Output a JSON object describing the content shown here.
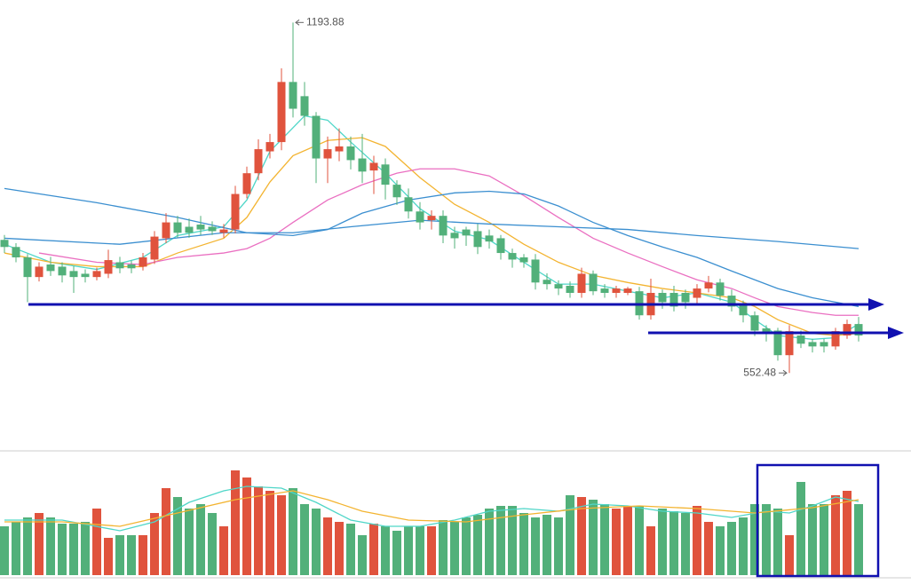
{
  "chart_data": [
    {
      "type": "candlestick",
      "ylim": [
        431,
        1235
      ],
      "up_color": "#e0533d",
      "down_color": "#52b07a",
      "open": [
        796,
        783,
        764,
        728,
        751,
        747,
        739,
        734,
        728,
        734,
        755,
        751,
        747,
        760,
        799,
        828,
        820,
        824,
        820,
        809,
        815,
        880,
        918,
        958,
        975,
        1085,
        1059,
        1023,
        945,
        958,
        967,
        945,
        923,
        934,
        897,
        874,
        848,
        832,
        840,
        809,
        815,
        812,
        804,
        799,
        772,
        764,
        760,
        723,
        715,
        712,
        699,
        734,
        707,
        699,
        699,
        702,
        658,
        699,
        699,
        699,
        690,
        707,
        718,
        694,
        677,
        658,
        634,
        630,
        585,
        621,
        609,
        609,
        601,
        621,
        642
      ],
      "close": [
        783,
        764,
        728,
        747,
        739,
        731,
        728,
        728,
        739,
        759,
        744,
        744,
        764,
        802,
        828,
        809,
        809,
        815,
        812,
        815,
        880,
        918,
        962,
        975,
        1085,
        1036,
        1023,
        945,
        962,
        967,
        942,
        921,
        937,
        897,
        874,
        848,
        828,
        840,
        804,
        799,
        804,
        783,
        793,
        772,
        760,
        755,
        718,
        715,
        707,
        699,
        734,
        702,
        699,
        707,
        707,
        658,
        699,
        682,
        674,
        682,
        707,
        718,
        694,
        674,
        658,
        630,
        625,
        585,
        629,
        606,
        601,
        601,
        629,
        642,
        621
      ],
      "high": [
        805,
        790,
        770,
        755,
        765,
        755,
        748,
        742,
        745,
        778,
        765,
        758,
        772,
        812,
        845,
        840,
        835,
        840,
        830,
        825,
        895,
        930,
        980,
        990,
        1110,
        1193.88,
        1085,
        1030,
        985,
        1000,
        985,
        990,
        950,
        945,
        905,
        890,
        865,
        850,
        850,
        820,
        820,
        825,
        815,
        805,
        780,
        770,
        770,
        735,
        722,
        720,
        745,
        740,
        715,
        712,
        710,
        710,
        725,
        705,
        712,
        705,
        715,
        730,
        725,
        705,
        685,
        665,
        640,
        635,
        640,
        630,
        615,
        615,
        635,
        650,
        655
      ],
      "low": [
        772,
        755,
        682,
        720,
        730,
        718,
        699,
        718,
        722,
        726,
        735,
        735,
        740,
        752,
        790,
        800,
        800,
        805,
        805,
        800,
        808,
        872,
        905,
        945,
        960,
        1020,
        1005,
        900,
        900,
        940,
        925,
        900,
        880,
        870,
        860,
        835,
        815,
        815,
        790,
        780,
        785,
        770,
        780,
        760,
        745,
        745,
        705,
        705,
        695,
        690,
        690,
        695,
        690,
        690,
        695,
        650,
        650,
        670,
        665,
        670,
        680,
        700,
        685,
        665,
        645,
        620,
        610,
        575,
        552.48,
        598,
        590,
        590,
        595,
        615,
        610
      ],
      "lines": [
        {
          "color": "#4fd6c8",
          "x": [
            0,
            4,
            8,
            12,
            15,
            19,
            21,
            23,
            26,
            28,
            30,
            33,
            36,
            39,
            42,
            45,
            48,
            51,
            54,
            57,
            60,
            63,
            65,
            67,
            70,
            72,
            74
          ],
          "values": [
            788,
            755,
            742,
            764,
            804,
            820,
            869,
            958,
            1023,
            1015,
            975,
            918,
            853,
            812,
            796,
            755,
            715,
            715,
            702,
            690,
            699,
            682,
            650,
            621,
            614,
            617,
            642
          ]
        },
        {
          "color": "#f3b431",
          "x": [
            0,
            4,
            8,
            12,
            15,
            19,
            21,
            23,
            25,
            28,
            31,
            33,
            36,
            39,
            42,
            45,
            48,
            51,
            54,
            57,
            60,
            63,
            65,
            67,
            70,
            72,
            74
          ],
          "values": [
            772,
            755,
            747,
            747,
            772,
            799,
            837,
            902,
            950,
            978,
            983,
            967,
            910,
            861,
            828,
            788,
            755,
            731,
            718,
            707,
            699,
            690,
            674,
            650,
            625,
            621,
            625
          ]
        },
        {
          "color": "#ea6fc1",
          "x": [
            3,
            8,
            12,
            15,
            19,
            21,
            23,
            25,
            28,
            31,
            34,
            36,
            39,
            42,
            45,
            48,
            51,
            54,
            57,
            60,
            63,
            65,
            67,
            70,
            72,
            74
          ],
          "values": [
            772,
            755,
            751,
            764,
            772,
            780,
            799,
            828,
            869,
            897,
            918,
            926,
            926,
            913,
            877,
            837,
            799,
            772,
            747,
            723,
            707,
            690,
            674,
            663,
            658,
            658
          ]
        },
        {
          "color": "#3b8fd0",
          "x": [
            0,
            8,
            15,
            21,
            25,
            28,
            31,
            35,
            39,
            42,
            45,
            48,
            51,
            54,
            57,
            60,
            63,
            67,
            70,
            74
          ],
          "values": [
            890,
            864,
            837,
            809,
            804,
            815,
            845,
            869,
            882,
            885,
            880,
            858,
            828,
            804,
            783,
            764,
            739,
            707,
            690,
            674
          ]
        },
        {
          "color": "#3b8fd0",
          "x": [
            0,
            10,
            19,
            25,
            30,
            36,
            42,
            48,
            54,
            60,
            67,
            74
          ],
          "values": [
            799,
            788,
            809,
            809,
            820,
            832,
            825,
            820,
            815,
            804,
            793,
            780
          ]
        }
      ]
    },
    {
      "type": "bar",
      "ylim": [
        0,
        130
      ],
      "values": [
        55,
        60,
        65,
        70,
        65,
        58,
        58,
        60,
        75,
        42,
        45,
        45,
        45,
        70,
        98,
        88,
        75,
        80,
        70,
        55,
        118,
        110,
        100,
        95,
        90,
        98,
        80,
        75,
        65,
        60,
        58,
        45,
        58,
        55,
        50,
        55,
        55,
        55,
        62,
        60,
        65,
        68,
        75,
        78,
        78,
        70,
        65,
        68,
        65,
        90,
        88,
        85,
        80,
        75,
        78,
        78,
        55,
        75,
        72,
        70,
        78,
        60,
        55,
        60,
        65,
        80,
        80,
        75,
        45,
        105,
        80,
        80,
        90,
        95,
        80
      ],
      "lines": [
        {
          "color": "#4fd6c8",
          "x": [
            0,
            5,
            10,
            13,
            16,
            19,
            21,
            24,
            27,
            30,
            33,
            36,
            39,
            42,
            45,
            48,
            51,
            54,
            57,
            60,
            63,
            66,
            68,
            70,
            72,
            74
          ],
          "values": [
            62,
            62,
            50,
            60,
            82,
            95,
            100,
            98,
            82,
            62,
            55,
            55,
            62,
            72,
            75,
            72,
            80,
            78,
            72,
            70,
            65,
            72,
            70,
            78,
            88,
            83
          ]
        },
        {
          "color": "#f3b431",
          "x": [
            0,
            5,
            10,
            15,
            20,
            25,
            28,
            31,
            35,
            40,
            45,
            50,
            55,
            60,
            65,
            70,
            74
          ],
          "values": [
            60,
            60,
            55,
            70,
            85,
            95,
            85,
            72,
            62,
            60,
            68,
            75,
            78,
            75,
            70,
            76,
            85
          ]
        }
      ]
    }
  ]
}
